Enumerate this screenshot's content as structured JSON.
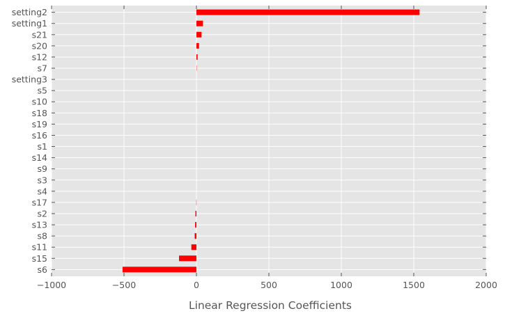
{
  "chart_data": {
    "type": "bar",
    "orientation": "horizontal",
    "title": "",
    "xlabel": "Linear Regression Coefficients",
    "ylabel": "",
    "xlim": [
      -1000,
      2000
    ],
    "xticks": [
      -1000,
      -500,
      0,
      500,
      1000,
      1500,
      2000
    ],
    "xtick_labels": [
      "−1000",
      "−500",
      "0",
      "500",
      "1000",
      "1500",
      "2000"
    ],
    "grid": true,
    "legend": "none",
    "categories": [
      "setting2",
      "setting1",
      "s21",
      "s20",
      "s12",
      "s7",
      "setting3",
      "s5",
      "s10",
      "s18",
      "s19",
      "s16",
      "s1",
      "s14",
      "s9",
      "s3",
      "s4",
      "s17",
      "s2",
      "s13",
      "s8",
      "s11",
      "s15",
      "s6"
    ],
    "values": [
      1540,
      45,
      35,
      18,
      8,
      3,
      0,
      0,
      0,
      0,
      0,
      0,
      0,
      0,
      0,
      0,
      0,
      -3,
      -7,
      -9,
      -12,
      -35,
      -120,
      -510
    ],
    "colors": {
      "bar": "#ff0000",
      "plot_background": "#e5e5e5",
      "grid": "#ffffff",
      "tick_text": "#555555"
    }
  }
}
